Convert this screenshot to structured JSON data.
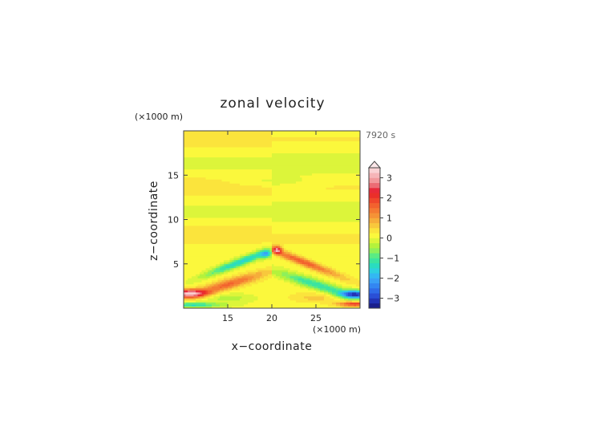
{
  "chart_data": {
    "type": "heatmap",
    "title": "zonal velocity",
    "xlabel": "x−coordinate",
    "ylabel": "z−coordinate",
    "x_unit": "(×1000 m)",
    "y_unit": "(×1000 m)",
    "time_label": "7920 s",
    "xlim": [
      10,
      30
    ],
    "ylim": [
      0,
      20
    ],
    "x_ticks": [
      "15",
      "20",
      "25"
    ],
    "x_tick_values": [
      15,
      20,
      25
    ],
    "y_ticks": [
      "5",
      "10",
      "15"
    ],
    "y_tick_values": [
      5,
      10,
      15
    ],
    "colorbar": {
      "levels": [
        -3.5,
        -3.25,
        -3,
        -2.75,
        -2.5,
        -2.25,
        -2,
        -1.75,
        -1.5,
        -1.25,
        -1,
        -0.75,
        -0.5,
        -0.25,
        0,
        0.25,
        0.5,
        0.75,
        1,
        1.25,
        1.5,
        1.75,
        2,
        2.25,
        2.5,
        2.75,
        3,
        3.25,
        3.5
      ],
      "colors": [
        "#1a1f8c",
        "#2233b5",
        "#2a4fd6",
        "#2f6be8",
        "#3386f2",
        "#3aa0f6",
        "#33b8f2",
        "#2ed0e0",
        "#2adcc0",
        "#3be4a0",
        "#5aeb84",
        "#8ef05a",
        "#b4f23c",
        "#dcf53a",
        "#fbf83c",
        "#fbe43c",
        "#f8c83c",
        "#f6ad3a",
        "#f59236",
        "#f47a32",
        "#f2622e",
        "#ef472b",
        "#ea2f2a",
        "#e82a3a",
        "#ec6c74",
        "#f2999c",
        "#f6b5b8",
        "#fad2d4"
      ],
      "tick_labels": [
        "3",
        "2",
        "1",
        "0",
        "−1",
        "−2",
        "−3"
      ],
      "tick_values": [
        3,
        2,
        1,
        0,
        -1,
        -2,
        -3
      ]
    },
    "features": [
      {
        "x": 20.6,
        "z": 6.6,
        "value": 2.5
      },
      {
        "x": 19.5,
        "z": 6.2,
        "value": -2.0
      },
      {
        "x": 16.0,
        "z": 5.2,
        "value": -1.5
      },
      {
        "x": 24.5,
        "z": 5.2,
        "value": 1.2
      },
      {
        "x": 16.0,
        "z": 3.6,
        "value": 1.4
      },
      {
        "x": 24.5,
        "z": 3.6,
        "value": -1.4
      },
      {
        "x": 11.0,
        "z": 1.7,
        "value": 2.8
      },
      {
        "x": 29.0,
        "z": 1.6,
        "value": -3.0
      },
      {
        "x": 11.0,
        "z": 0.5,
        "value": -1.6
      },
      {
        "x": 29.0,
        "z": 0.6,
        "value": 2.2
      },
      {
        "x": 15.0,
        "z": 1.0,
        "value": -0.6
      },
      {
        "x": 25.0,
        "z": 1.0,
        "value": 0.6
      }
    ]
  }
}
